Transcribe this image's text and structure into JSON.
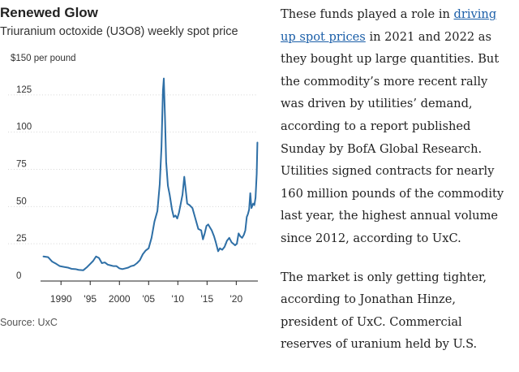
{
  "chart_data": {
    "type": "line",
    "title": "Renewed Glow",
    "subtitle": "Triuranium octoxide (U3O8) weekly spot price",
    "ylabel": "$150 per pound",
    "ylim": [
      0,
      150
    ],
    "xlim": [
      1986.5,
      2023.7
    ],
    "y_ticks": [
      {
        "value": 125,
        "label": "125"
      },
      {
        "value": 100,
        "label": "100"
      },
      {
        "value": 75,
        "label": "75"
      },
      {
        "value": 50,
        "label": "50"
      },
      {
        "value": 25,
        "label": "25"
      },
      {
        "value": 0,
        "label": "0"
      }
    ],
    "x_ticks": [
      {
        "value": 1990,
        "label": "1990"
      },
      {
        "value": 1995,
        "label": "'95"
      },
      {
        "value": 2000,
        "label": "2000"
      },
      {
        "value": 2005,
        "label": "'05"
      },
      {
        "value": 2010,
        "label": "'10"
      },
      {
        "value": 2015,
        "label": "'15"
      },
      {
        "value": 2020,
        "label": "'20"
      }
    ],
    "grid": true,
    "series": [
      {
        "name": "U3O8 weekly spot price",
        "color": "#2e6fa6",
        "x": [
          1987.0,
          1987.8,
          1988.5,
          1989.2,
          1989.8,
          1990.5,
          1991.2,
          1991.8,
          1992.5,
          1993.0,
          1993.8,
          1994.5,
          1995.0,
          1995.5,
          1996.0,
          1996.5,
          1997.0,
          1997.5,
          1998.0,
          1998.5,
          1999.0,
          1999.5,
          2000.0,
          2000.5,
          2001.0,
          2001.5,
          2002.0,
          2002.5,
          2003.0,
          2003.5,
          2004.0,
          2004.5,
          2005.0,
          2005.5,
          2006.0,
          2006.5,
          2006.9,
          2007.2,
          2007.45,
          2007.6,
          2007.8,
          2008.0,
          2008.3,
          2008.6,
          2009.0,
          2009.3,
          2009.6,
          2009.9,
          2010.2,
          2010.5,
          2010.8,
          2011.1,
          2011.3,
          2011.6,
          2012.0,
          2012.5,
          2013.0,
          2013.5,
          2014.0,
          2014.3,
          2014.6,
          2014.9,
          2015.2,
          2015.5,
          2015.8,
          2016.2,
          2016.5,
          2016.9,
          2017.2,
          2017.6,
          2018.0,
          2018.4,
          2018.8,
          2019.2,
          2019.5,
          2019.8,
          2020.1,
          2020.4,
          2020.7,
          2021.0,
          2021.3,
          2021.55,
          2021.8,
          2022.0,
          2022.2,
          2022.4,
          2022.6,
          2022.9,
          2023.1,
          2023.3,
          2023.5,
          2023.62
        ],
        "values": [
          16.5,
          16.0,
          13.0,
          11.5,
          10.0,
          9.5,
          9.0,
          8.2,
          8.0,
          7.5,
          7.2,
          9.5,
          11.5,
          13.5,
          16.5,
          15.5,
          12.0,
          12.5,
          11.0,
          10.5,
          10.0,
          10.0,
          8.5,
          8.0,
          8.5,
          9.0,
          10.0,
          10.5,
          12.0,
          14.0,
          18.0,
          20.5,
          22.0,
          29.0,
          40.0,
          47.0,
          65.0,
          90.0,
          128.0,
          136.0,
          110.0,
          80.0,
          64.0,
          58.0,
          48.0,
          43.0,
          44.0,
          42.0,
          46.0,
          52.0,
          58.0,
          70.0,
          63.0,
          52.0,
          51.0,
          49.0,
          42.0,
          35.0,
          34.0,
          28.0,
          32.0,
          37.0,
          38.0,
          36.0,
          34.0,
          30.0,
          26.0,
          20.0,
          22.0,
          21.0,
          23.0,
          27.0,
          29.0,
          26.0,
          25.0,
          24.0,
          25.0,
          32.0,
          30.0,
          29.0,
          31.0,
          34.0,
          43.0,
          45.0,
          48.0,
          59.0,
          49.0,
          52.0,
          51.0,
          56.0,
          72.0,
          93.0
        ]
      }
    ]
  },
  "source": "Source: UxC",
  "article": {
    "p1_before_link": "These funds played a role in",
    "p1_link_line1": "driving",
    "p1_link_line2": "up spot prices",
    "p1_after_link": "in 2021 and 2022 as",
    "p1_line3": "they bought up large quantities. But",
    "p1_line4": "the commodity’s more recent rally",
    "p1_line5": "was driven by utilities’ demand,",
    "p1_line6": "according to a report published",
    "p1_line7": "Sunday by BofA Global Research.",
    "p1_line8": "Utilities signed contracts for nearly",
    "p1_line9": "160 million pounds of the commodity",
    "p1_line10": "last year, the highest annual volume",
    "p1_line11": "since 2012, according to UxC.",
    "p2_line1": "The market is only getting tighter,",
    "p2_line2": "according to Jonathan Hinze,",
    "p2_line3": "president of UxC. Commercial",
    "p2_line4": "reserves of uranium held by U.S."
  }
}
